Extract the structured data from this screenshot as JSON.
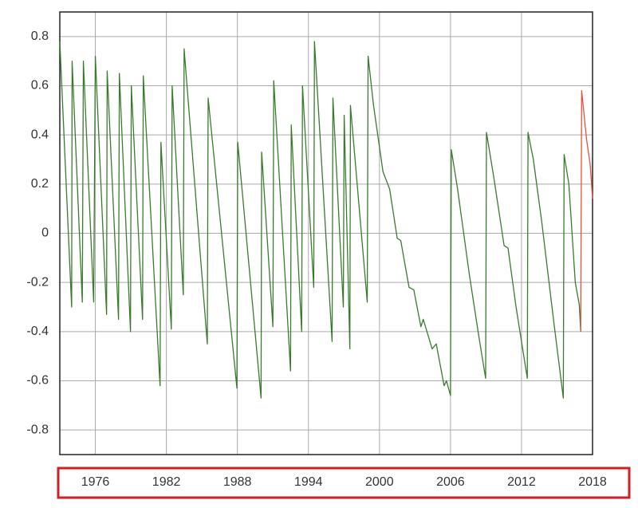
{
  "chart_data": {
    "type": "line",
    "xlim": [
      1973,
      2018
    ],
    "xticks": [
      1976,
      1982,
      1988,
      1994,
      2000,
      2006,
      2012,
      2018
    ],
    "ylim": [
      -0.9,
      0.9
    ],
    "yticks": [
      -0.8,
      -0.6,
      -0.4,
      -0.2,
      0,
      0.2,
      0.4,
      0.6,
      0.8
    ],
    "grid": true,
    "series": [
      {
        "color": "#3a7a2e",
        "x": [
          1973.0,
          1974.0,
          1974.04,
          1974.9,
          1974.99,
          1975.86,
          1976.0,
          1976.95,
          1977.0,
          1977.96,
          1978.03,
          1978.97,
          1979.04,
          1979.99,
          1980.05,
          1981.47,
          1981.54,
          1982.42,
          1982.49,
          1983.43,
          1983.5,
          1985.46,
          1985.53,
          1987.96,
          1988.03,
          1990.0,
          1990.05,
          1991.0,
          1991.07,
          1992.49,
          1992.55,
          1993.43,
          1993.5,
          1994.45,
          1994.51,
          1996.0,
          1996.07,
          1996.95,
          1997.02,
          1997.5,
          1997.55,
          1998.97,
          1999.04,
          1999.5,
          2000.3,
          2000.86,
          2001.5,
          2001.8,
          2002.5,
          2002.9,
          2003.5,
          2003.7,
          2004.45,
          2004.8,
          2005.46,
          2005.66,
          2006.0,
          2006.07,
          2006.6,
          2007.6,
          2008.43,
          2008.97,
          2009.04,
          2009.65,
          2010.53,
          2010.86,
          2011.54,
          2012.49,
          2012.55,
          2013.0,
          2013.7,
          2014.7,
          2015.53,
          2015.6,
          2016.0,
          2016.54,
          2016.88,
          2017.0
        ],
        "values": [
          0.78,
          -0.3,
          0.7,
          -0.28,
          0.7,
          -0.28,
          0.72,
          -0.33,
          0.66,
          -0.35,
          0.65,
          -0.4,
          0.6,
          -0.35,
          0.64,
          -0.62,
          0.37,
          -0.39,
          0.6,
          -0.25,
          0.75,
          -0.45,
          0.55,
          -0.63,
          0.37,
          -0.67,
          0.33,
          -0.38,
          0.62,
          -0.56,
          0.44,
          -0.4,
          0.6,
          -0.22,
          0.78,
          -0.44,
          0.55,
          -0.3,
          0.48,
          -0.47,
          0.52,
          -0.28,
          0.72,
          0.52,
          0.25,
          0.18,
          -0.02,
          -0.03,
          -0.22,
          -0.23,
          -0.38,
          -0.35,
          -0.47,
          -0.45,
          -0.62,
          -0.6,
          -0.66,
          0.34,
          0.18,
          -0.17,
          -0.43,
          -0.59,
          0.41,
          0.23,
          -0.05,
          -0.06,
          -0.3,
          -0.59,
          0.41,
          0.3,
          0.05,
          -0.35,
          -0.67,
          0.32,
          0.2,
          -0.2,
          -0.29,
          -0.4
        ]
      },
      {
        "color": "#e8503a",
        "x": [
          2017.0,
          2017.08,
          2017.5,
          2017.8,
          2018.0
        ],
        "values": [
          -0.4,
          0.58,
          0.38,
          0.28,
          0.14
        ]
      }
    ]
  }
}
